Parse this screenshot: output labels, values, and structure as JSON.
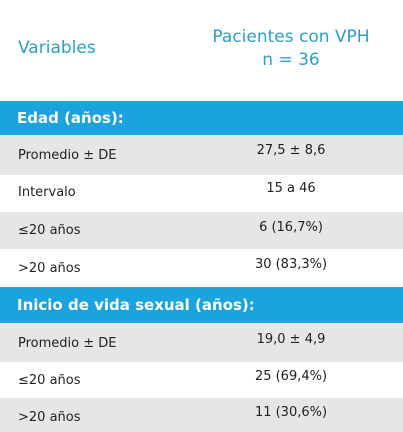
{
  "header": {
    "variables_label": "Variables",
    "patients_line1": "Pacientes con VPH",
    "patients_line2": "n = 36"
  },
  "sections": [
    {
      "title": "Edad (años):",
      "rows": [
        {
          "label": "Promedio ± DE",
          "value": "27,5 ± 8,6"
        },
        {
          "label": "Intervalo",
          "value": "15 a 46"
        },
        {
          "label": "≤20 años",
          "value": "6 (16,7%)"
        },
        {
          "label": ">20 años",
          "value": "30 (83,3%)"
        }
      ]
    },
    {
      "title": "Inicio de vida sexual (años):",
      "rows": [
        {
          "label": "Promedio ± DE",
          "value": "19,0 ± 4,9"
        },
        {
          "label": "≤20 años",
          "value": "25 (69,4%)"
        },
        {
          "label": ">20 años",
          "value": "11 (30,6%)"
        }
      ]
    }
  ],
  "colors": {
    "header_text": "#2a9fc7",
    "section_bg": "#1aa3de",
    "row_alt_bg": "#e6e6e6"
  }
}
